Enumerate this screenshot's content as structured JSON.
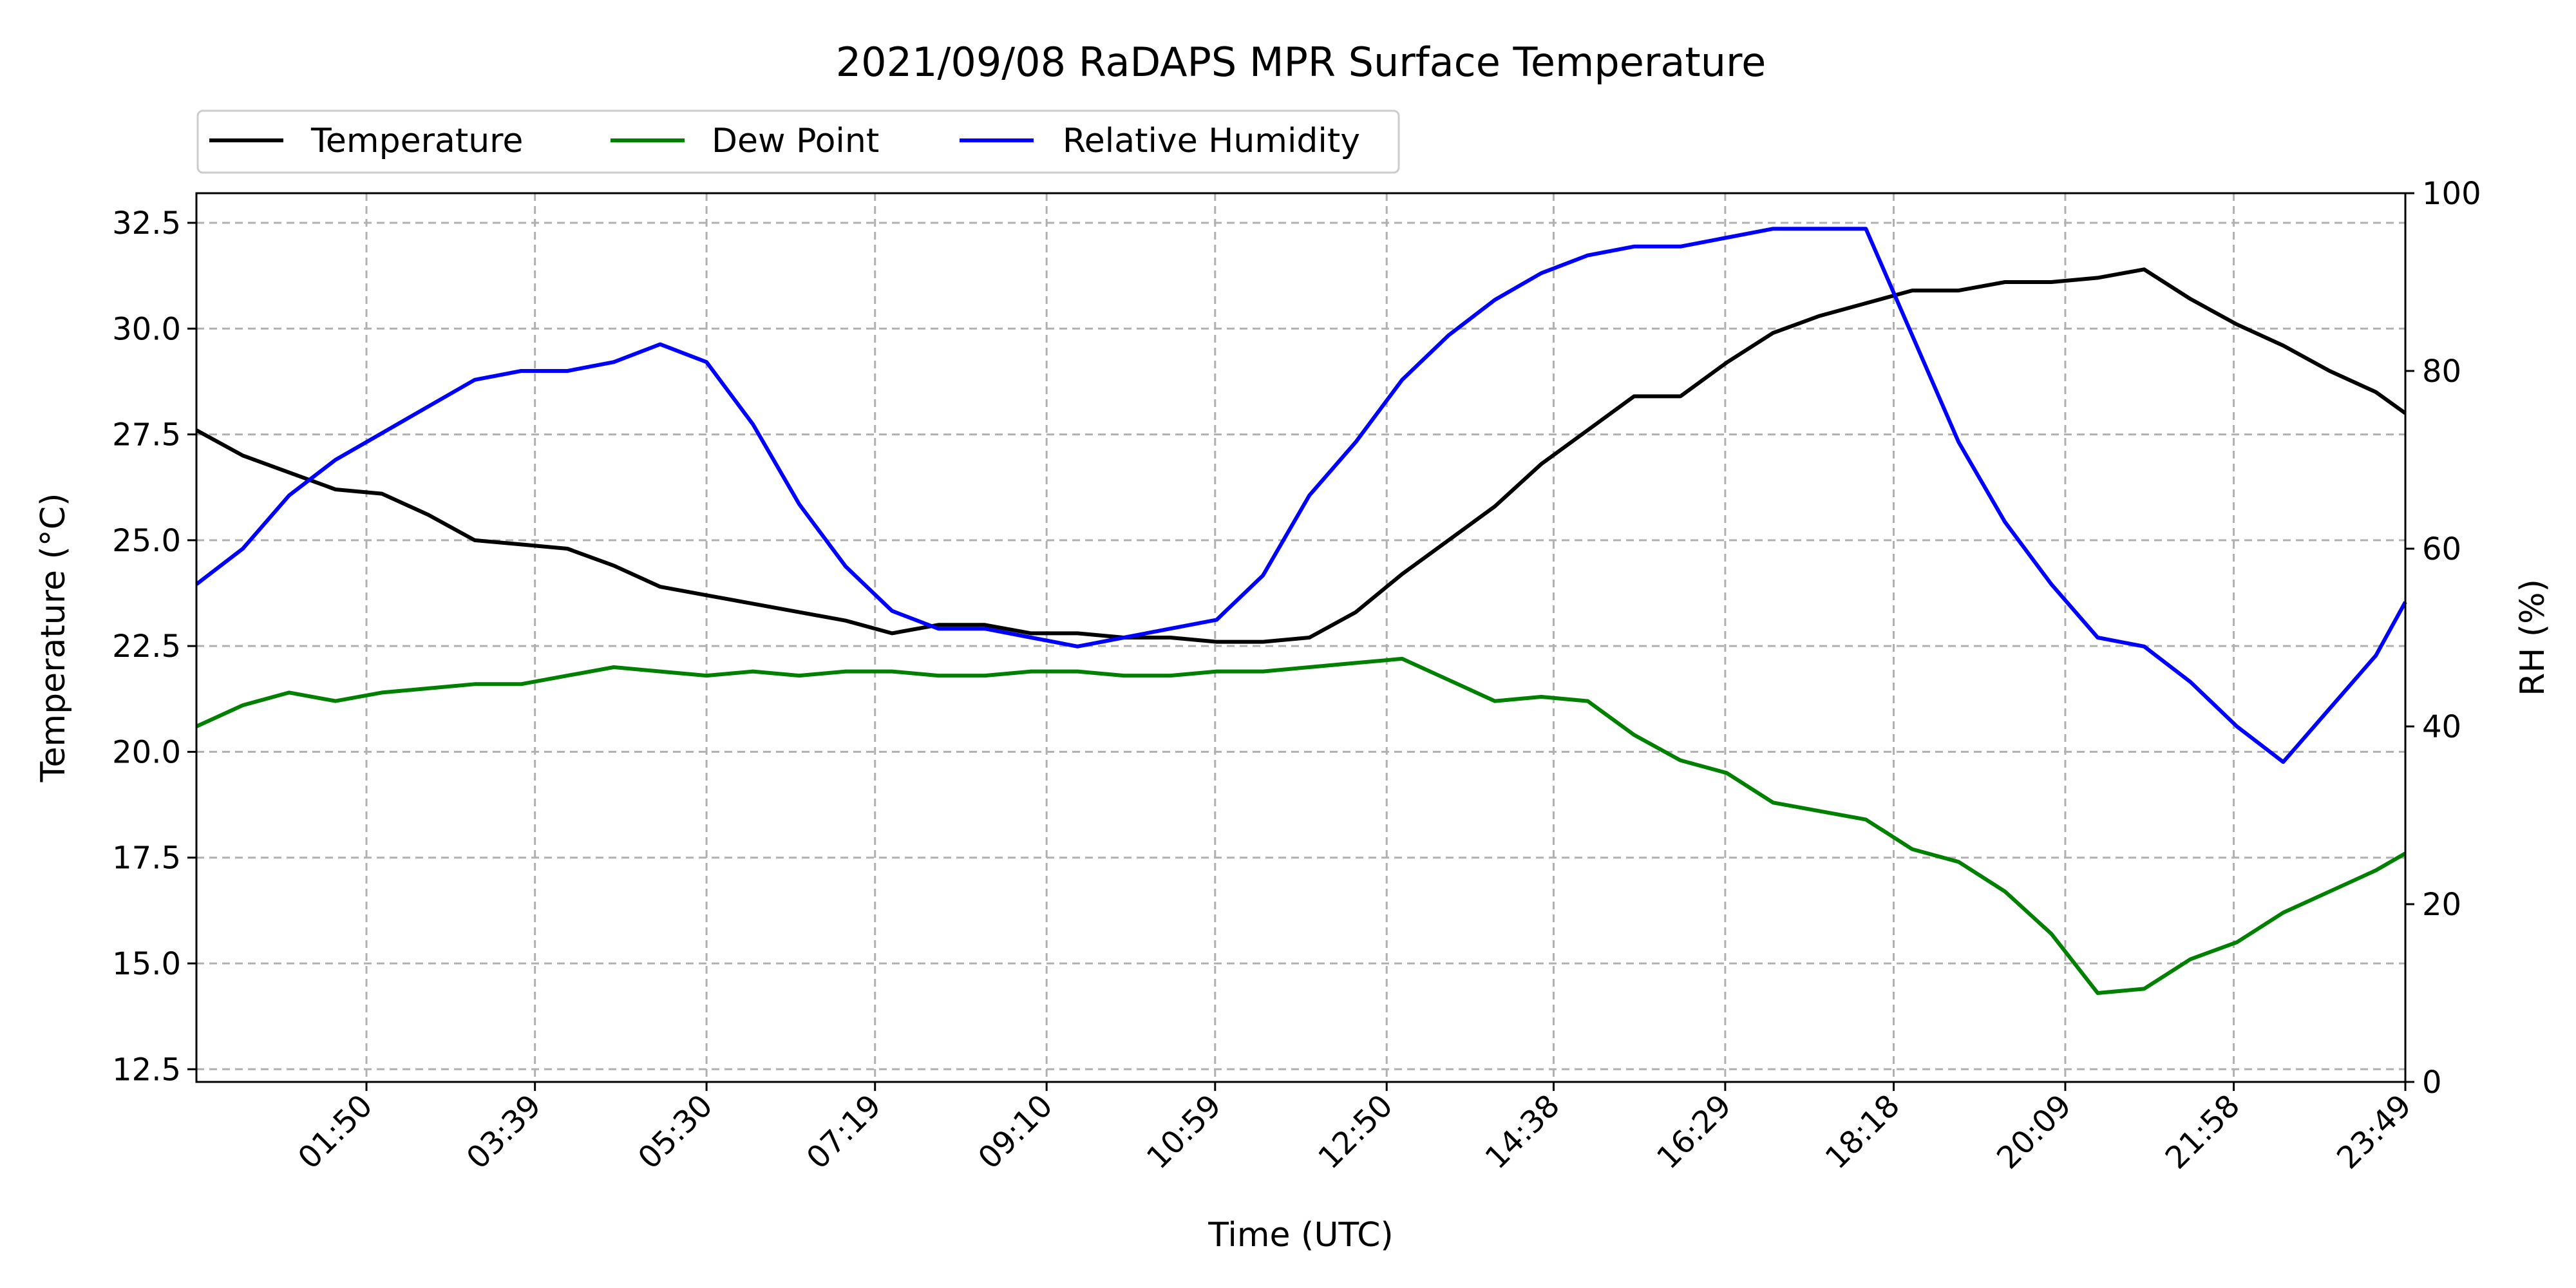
{
  "chart_data": {
    "type": "line",
    "title": "2021/09/08 RaDAPS MPR Surface Temperature",
    "xlabel": "Time (UTC)",
    "ylabel": "Temperature ($^\\circ$C)",
    "ylabel_display": "Temperature (°C)",
    "y2label": "RH (%)",
    "x_range": [
      "00:00",
      "23:49"
    ],
    "x_ticks": [
      "01:50",
      "03:39",
      "05:30",
      "07:19",
      "09:10",
      "10:59",
      "12:50",
      "14:38",
      "16:29",
      "18:18",
      "20:09",
      "21:58",
      "23:49"
    ],
    "ylim": [
      12.2,
      33.2
    ],
    "y_ticks": [
      "12.5",
      "15.0",
      "17.5",
      "20.0",
      "22.5",
      "25.0",
      "27.5",
      "30.0",
      "32.5"
    ],
    "y2lim": [
      0,
      100
    ],
    "y2_ticks": [
      "0",
      "20",
      "40",
      "60",
      "80",
      "100"
    ],
    "grid": true,
    "legend_placement": "above-left",
    "series": [
      {
        "name": "Temperature",
        "axis": "left",
        "color": "#000000",
        "x": [
          "00:00",
          "00:30",
          "01:00",
          "01:30",
          "02:00",
          "02:30",
          "03:00",
          "03:30",
          "04:00",
          "04:30",
          "05:00",
          "05:30",
          "06:00",
          "06:30",
          "07:00",
          "07:30",
          "08:00",
          "08:30",
          "09:00",
          "09:30",
          "10:00",
          "10:30",
          "11:00",
          "11:30",
          "12:00",
          "12:30",
          "13:00",
          "13:30",
          "14:00",
          "14:30",
          "15:00",
          "15:30",
          "16:00",
          "16:30",
          "17:00",
          "17:30",
          "18:00",
          "18:30",
          "19:00",
          "19:30",
          "20:00",
          "20:30",
          "21:00",
          "21:30",
          "22:00",
          "22:30",
          "23:00",
          "23:30",
          "23:49"
        ],
        "values": [
          27.6,
          27.0,
          26.6,
          26.2,
          26.1,
          25.6,
          25.0,
          24.9,
          24.8,
          24.4,
          23.9,
          23.7,
          23.5,
          23.3,
          23.1,
          22.8,
          23.0,
          23.0,
          22.8,
          22.8,
          22.7,
          22.7,
          22.6,
          22.6,
          22.7,
          23.3,
          24.2,
          25.0,
          25.8,
          26.8,
          27.6,
          28.4,
          28.4,
          29.2,
          29.9,
          30.3,
          30.6,
          30.9,
          30.9,
          31.1,
          31.1,
          31.2,
          31.4,
          30.7,
          30.1,
          29.6,
          29.0,
          28.5,
          28.0
        ]
      },
      {
        "name": "Dew Point",
        "axis": "left",
        "color": "#008000",
        "x": [
          "00:00",
          "00:30",
          "01:00",
          "01:30",
          "02:00",
          "02:30",
          "03:00",
          "03:30",
          "04:00",
          "04:30",
          "05:00",
          "05:30",
          "06:00",
          "06:30",
          "07:00",
          "07:30",
          "08:00",
          "08:30",
          "09:00",
          "09:30",
          "10:00",
          "10:30",
          "11:00",
          "11:30",
          "12:00",
          "12:30",
          "13:00",
          "13:30",
          "14:00",
          "14:30",
          "15:00",
          "15:30",
          "16:00",
          "16:30",
          "17:00",
          "17:30",
          "18:00",
          "18:30",
          "19:00",
          "19:30",
          "20:00",
          "20:30",
          "21:00",
          "21:30",
          "22:00",
          "22:30",
          "23:00",
          "23:30",
          "23:49"
        ],
        "values": [
          20.6,
          21.1,
          21.4,
          21.2,
          21.4,
          21.5,
          21.6,
          21.6,
          21.8,
          22.0,
          21.9,
          21.8,
          21.9,
          21.8,
          21.9,
          21.9,
          21.8,
          21.8,
          21.9,
          21.9,
          21.8,
          21.8,
          21.9,
          21.9,
          22.0,
          22.1,
          22.2,
          21.7,
          21.2,
          21.3,
          21.2,
          20.4,
          19.8,
          19.5,
          18.8,
          18.6,
          18.4,
          17.7,
          17.4,
          16.7,
          15.7,
          14.3,
          14.4,
          15.1,
          15.5,
          16.2,
          16.7,
          17.2,
          17.6
        ]
      },
      {
        "name": "Relative Humidity",
        "axis": "right",
        "color": "#0000ff",
        "x": [
          "00:00",
          "00:30",
          "01:00",
          "01:30",
          "02:00",
          "02:30",
          "03:00",
          "03:30",
          "04:00",
          "04:30",
          "05:00",
          "05:30",
          "06:00",
          "06:30",
          "07:00",
          "07:30",
          "08:00",
          "08:30",
          "09:00",
          "09:30",
          "10:00",
          "10:30",
          "11:00",
          "11:30",
          "12:00",
          "12:30",
          "13:00",
          "13:30",
          "14:00",
          "14:30",
          "15:00",
          "15:30",
          "16:00",
          "16:30",
          "17:00",
          "17:30",
          "18:00",
          "18:30",
          "19:00",
          "19:30",
          "20:00",
          "20:30",
          "21:00",
          "21:30",
          "22:00",
          "22:30",
          "23:00",
          "23:30",
          "23:49"
        ],
        "values": [
          56,
          60,
          66,
          70,
          73,
          76,
          79,
          80,
          80,
          81,
          83,
          81,
          74,
          65,
          58,
          53,
          51,
          51,
          50,
          49,
          50,
          51,
          52,
          57,
          66,
          72,
          79,
          84,
          88,
          91,
          93,
          94,
          94,
          95,
          96,
          96,
          96,
          84,
          72,
          63,
          56,
          50,
          49,
          45,
          40,
          36,
          42,
          48,
          54
        ]
      }
    ]
  }
}
